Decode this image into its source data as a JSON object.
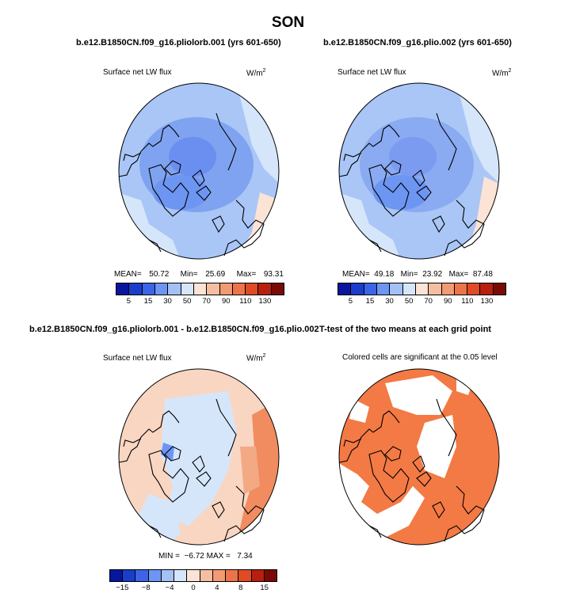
{
  "season": "SON",
  "panels": [
    {
      "title": "b.e12.B1850CN.f09_g16.pliolorb.001 (yrs 601-650)",
      "var": "Surface net LW flux",
      "unit": "W/m",
      "unit_exp": "2",
      "stats": {
        "mean_label": "MEAN=",
        "mean": "50.72",
        "min_label": "Min=",
        "min": "25.69",
        "max_label": "Max=",
        "max": "93.31"
      }
    },
    {
      "title": "b.e12.B1850CN.f09_g16.plio.002 (yrs 601-650)",
      "var": "Surface net LW flux",
      "unit": "W/m",
      "unit_exp": "2",
      "stats": {
        "mean_label": "MEAN=",
        "mean": "49.18",
        "min_label": "Min=",
        "min": "23.92",
        "max_label": "Max=",
        "max": "87.48"
      }
    },
    {
      "title": "b.e12.B1850CN.f09_g16.pliolorb.001 - b.e12.B1850CN.f09_g16.plio.002",
      "var": "Surface net LW flux",
      "unit": "W/m",
      "unit_exp": "2",
      "stats": {
        "min_label": "MIN =",
        "min": "−6.72",
        "max_label": "MAX =",
        "max": "7.34"
      }
    },
    {
      "title": "T-test of the two means at each grid point",
      "note": "Colored cells are significant at the 0.05 level"
    }
  ],
  "colorbar_abs": {
    "colors": [
      "#08169e",
      "#1b3dcc",
      "#3c64e6",
      "#6d95f2",
      "#a3c0f7",
      "#d5e6fb",
      "#fbe3d5",
      "#f6bea0",
      "#f19a73",
      "#ec7449",
      "#e04a25",
      "#b81f10",
      "#7a0a04"
    ],
    "ticks": [
      "5",
      "15",
      "30",
      "50",
      "70",
      "90",
      "110",
      "130"
    ]
  },
  "colorbar_diff": {
    "colors": [
      "#08169e",
      "#1b3dcc",
      "#3c64e6",
      "#6d95f2",
      "#a3c0f7",
      "#d5e6fb",
      "#fbe3d5",
      "#f6bea0",
      "#f19a73",
      "#ec7449",
      "#e04a25",
      "#b81f10",
      "#7a0a04"
    ],
    "ticks": [
      "−15",
      "−8",
      "−4",
      "0",
      "4",
      "8",
      "15"
    ]
  }
}
